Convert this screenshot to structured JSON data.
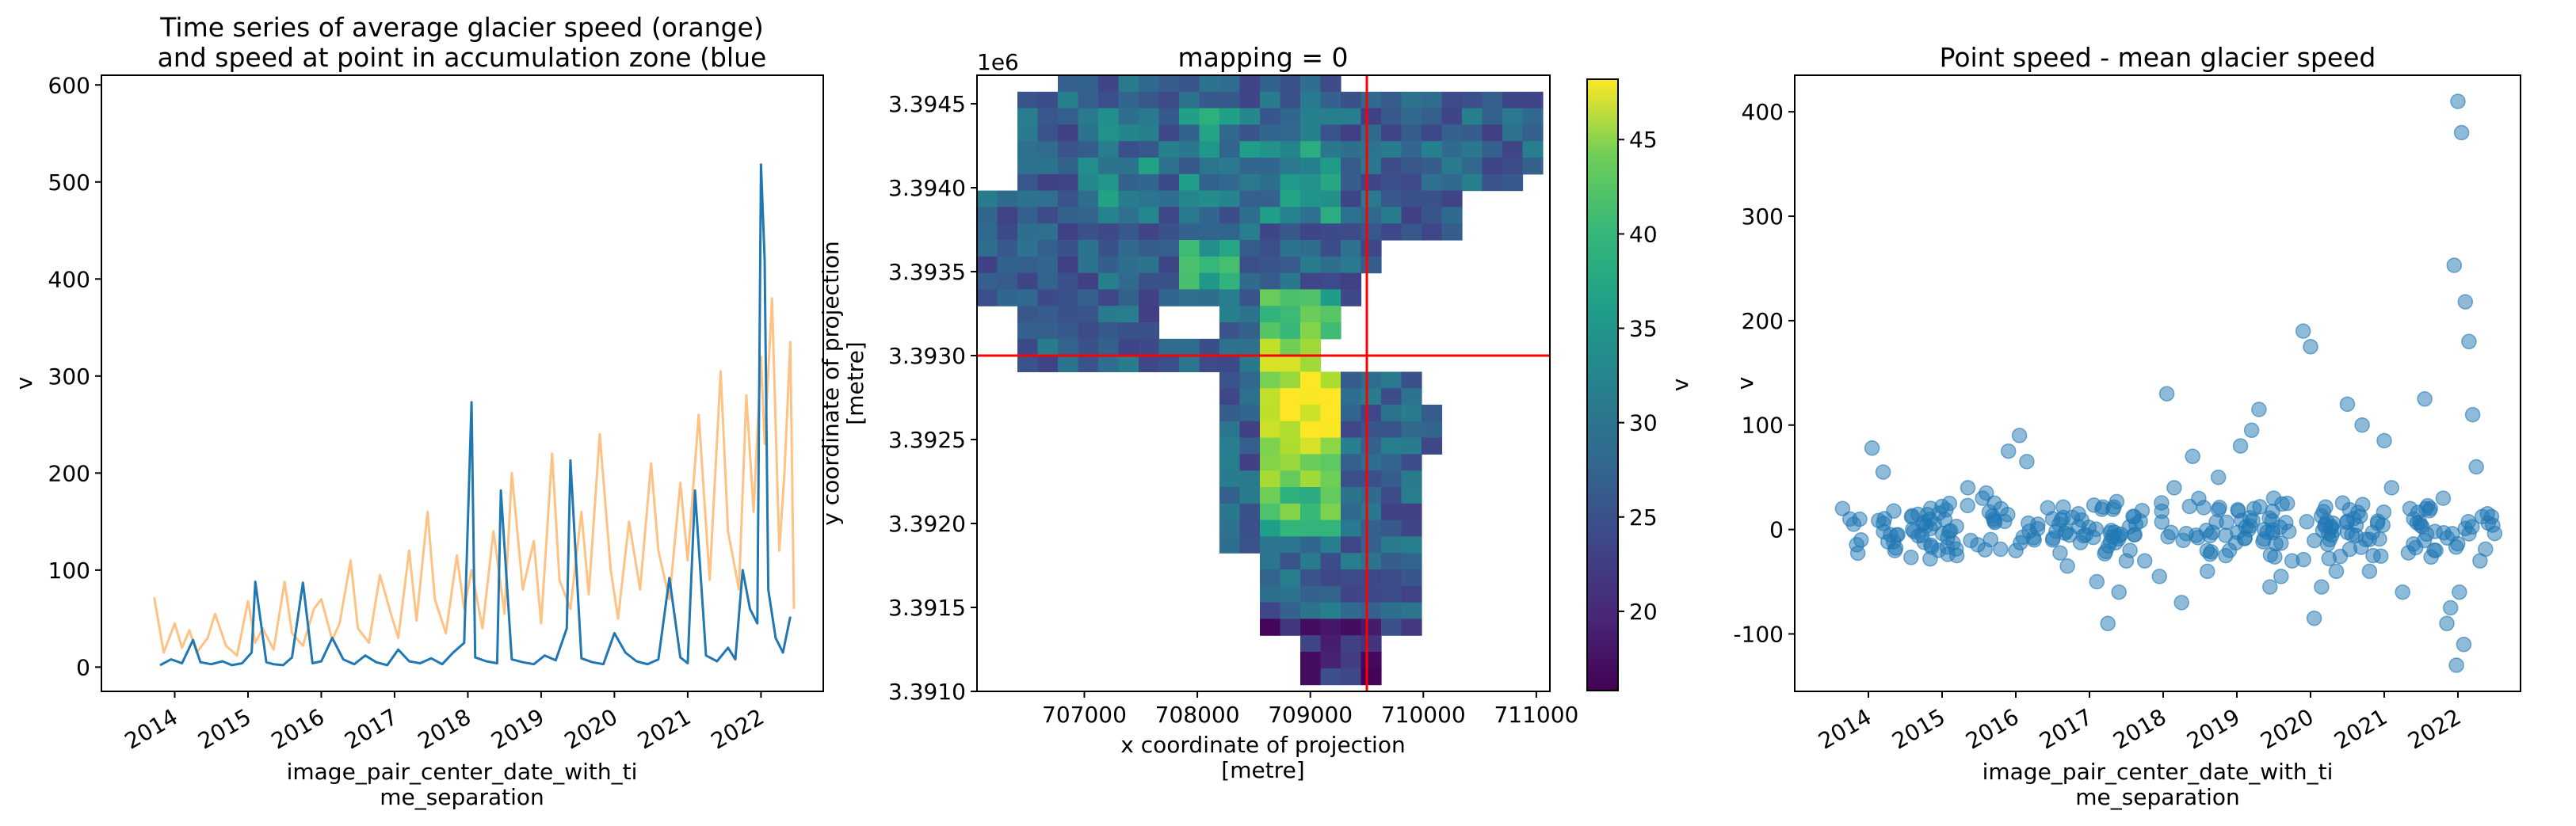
{
  "chart_data": [
    {
      "type": "line",
      "title_line1": "Time series of average glacier speed (orange)",
      "title_line2": "and speed at point in accumulation zone (blue",
      "xlabel_line1": "image_pair_center_date_with_ti",
      "xlabel_line2": "me_separation",
      "ylabel": "v",
      "xlim": [
        2013.0,
        2022.85
      ],
      "ylim": [
        -25,
        610
      ],
      "yticks": [
        "0",
        "100",
        "200",
        "300",
        "400",
        "500",
        "600"
      ],
      "xticks": [
        "2014",
        "2015",
        "2016",
        "2017",
        "2018",
        "2019",
        "2020",
        "2021",
        "2022"
      ],
      "grid": false,
      "series": [
        {
          "color": "#1f77b4",
          "x": [
            2013.8,
            2013.95,
            2014.1,
            2014.25,
            2014.35,
            2014.5,
            2014.65,
            2014.78,
            2014.92,
            2015.05,
            2015.1,
            2015.25,
            2015.35,
            2015.48,
            2015.6,
            2015.75,
            2015.88,
            2016.0,
            2016.15,
            2016.3,
            2016.45,
            2016.6,
            2016.75,
            2016.9,
            2017.05,
            2017.2,
            2017.35,
            2017.5,
            2017.65,
            2017.8,
            2017.95,
            2018.05,
            2018.1,
            2018.25,
            2018.4,
            2018.45,
            2018.6,
            2018.75,
            2018.9,
            2019.05,
            2019.2,
            2019.35,
            2019.4,
            2019.55,
            2019.7,
            2019.85,
            2020.0,
            2020.15,
            2020.3,
            2020.45,
            2020.6,
            2020.75,
            2020.9,
            2021.0,
            2021.1,
            2021.25,
            2021.4,
            2021.55,
            2021.65,
            2021.75,
            2021.85,
            2021.95,
            2022.0,
            2022.05,
            2022.1,
            2022.2,
            2022.3,
            2022.4
          ],
          "values": [
            2,
            8,
            4,
            28,
            5,
            3,
            6,
            2,
            4,
            15,
            88,
            5,
            3,
            2,
            10,
            87,
            4,
            6,
            30,
            8,
            3,
            12,
            5,
            2,
            18,
            6,
            4,
            9,
            3,
            15,
            25,
            273,
            10,
            6,
            4,
            182,
            8,
            5,
            3,
            12,
            7,
            40,
            213,
            9,
            5,
            3,
            35,
            15,
            6,
            3,
            8,
            92,
            10,
            4,
            182,
            12,
            6,
            20,
            8,
            100,
            60,
            45,
            518,
            420,
            80,
            30,
            15,
            52
          ]
        },
        {
          "color": "#ffbb78",
          "x": [
            2013.72,
            2013.85,
            2014.0,
            2014.1,
            2014.2,
            2014.3,
            2014.45,
            2014.55,
            2014.7,
            2014.85,
            2015.0,
            2015.1,
            2015.2,
            2015.35,
            2015.5,
            2015.6,
            2015.75,
            2015.9,
            2016.0,
            2016.15,
            2016.25,
            2016.4,
            2016.5,
            2016.65,
            2016.8,
            2016.95,
            2017.05,
            2017.2,
            2017.3,
            2017.45,
            2017.55,
            2017.7,
            2017.85,
            2017.95,
            2018.05,
            2018.2,
            2018.35,
            2018.5,
            2018.6,
            2018.75,
            2018.9,
            2019.0,
            2019.15,
            2019.25,
            2019.4,
            2019.55,
            2019.65,
            2019.8,
            2019.95,
            2020.05,
            2020.2,
            2020.35,
            2020.5,
            2020.6,
            2020.75,
            2020.9,
            2021.0,
            2021.15,
            2021.3,
            2021.45,
            2021.55,
            2021.7,
            2021.8,
            2021.9,
            2022.0,
            2022.05,
            2022.15,
            2022.25,
            2022.32,
            2022.4,
            2022.45
          ],
          "values": [
            72,
            15,
            45,
            20,
            38,
            15,
            30,
            55,
            22,
            12,
            68,
            25,
            40,
            18,
            88,
            35,
            22,
            60,
            70,
            28,
            45,
            110,
            40,
            25,
            95,
            55,
            30,
            120,
            48,
            160,
            70,
            35,
            115,
            60,
            100,
            40,
            140,
            55,
            200,
            80,
            130,
            45,
            220,
            90,
            60,
            160,
            75,
            240,
            100,
            50,
            150,
            80,
            210,
            120,
            70,
            190,
            110,
            260,
            90,
            305,
            140,
            80,
            280,
            160,
            320,
            230,
            380,
            120,
            200,
            335,
            60
          ]
        }
      ]
    },
    {
      "type": "heatmap",
      "title": "mapping = 0",
      "offset_text": "1e6",
      "xlabel_line1": "x coordinate of projection",
      "xlabel_line2": "[metre]",
      "ylabel_line1": "y coordinate of projection",
      "ylabel_line2": "[metre]",
      "xlim": [
        706050,
        711120
      ],
      "ylim": [
        3.391,
        3.39467
      ],
      "xticks": [
        "707000",
        "708000",
        "709000",
        "710000",
        "711000"
      ],
      "yticks": [
        "3.3910",
        "3.3915",
        "3.3920",
        "3.3925",
        "3.3930",
        "3.3935",
        "3.3940",
        "3.3945"
      ],
      "colormap": "viridis",
      "colorbar_label": "v",
      "colorbar_range": [
        15.8,
        48.2
      ],
      "colorbar_ticks": [
        "20",
        "25",
        "30",
        "35",
        "40",
        "45"
      ],
      "crosshair": {
        "x": 709500,
        "y": 3.393,
        "color": "#ff0000"
      },
      "grid": false
    },
    {
      "type": "scatter",
      "title": "Point speed - mean glacier speed",
      "xlabel_line1": "image_pair_center_date_with_ti",
      "xlabel_line2": "me_separation",
      "ylabel": "v",
      "xlim": [
        2013.0,
        2022.85
      ],
      "ylim": [
        -155,
        435
      ],
      "yticks": [
        "-100",
        "0",
        "100",
        "200",
        "300",
        "400"
      ],
      "xticks": [
        "2014",
        "2015",
        "2016",
        "2017",
        "2018",
        "2019",
        "2020",
        "2021",
        "2022"
      ],
      "color": "#1f77b4",
      "grid": false,
      "x": [
        2013.65,
        2013.8,
        2013.9,
        2014.05,
        2014.2,
        2014.4,
        2014.6,
        2014.85,
        2015.1,
        2015.2,
        2015.35,
        2015.55,
        2015.7,
        2015.9,
        2016.05,
        2016.15,
        2016.3,
        2016.5,
        2016.7,
        2016.95,
        2017.1,
        2017.25,
        2017.4,
        2017.55,
        2017.75,
        2017.95,
        2018.05,
        2018.25,
        2018.4,
        2018.6,
        2018.75,
        2018.9,
        2019.05,
        2019.2,
        2019.3,
        2019.45,
        2019.6,
        2019.75,
        2019.9,
        2020.0,
        2020.05,
        2020.2,
        2020.35,
        2020.5,
        2020.7,
        2020.85,
        2021.0,
        2021.1,
        2021.25,
        2021.4,
        2021.55,
        2021.7,
        2021.8,
        2021.9,
        2021.95,
        2022.0,
        2022.05,
        2022.1,
        2022.15,
        2022.2,
        2022.25,
        2022.3,
        2022.4,
        2013.75,
        2014.3,
        2014.95,
        2015.6,
        2016.25,
        2016.85,
        2017.5,
        2018.15,
        2018.85,
        2019.5,
        2020.15,
        2020.8,
        2021.35,
        2021.85,
        2021.98,
        2022.02,
        2022.08
      ],
      "y": [
        20,
        5,
        -10,
        78,
        55,
        -5,
        0,
        -15,
        25,
        -25,
        40,
        30,
        10,
        75,
        90,
        65,
        5,
        -10,
        -35,
        -5,
        -50,
        -90,
        -60,
        -20,
        -30,
        -45,
        130,
        -70,
        70,
        -40,
        50,
        -20,
        80,
        95,
        115,
        -55,
        -45,
        -30,
        190,
        175,
        -85,
        5,
        -40,
        120,
        100,
        -25,
        85,
        40,
        -60,
        10,
        125,
        -20,
        30,
        -75,
        253,
        410,
        380,
        218,
        180,
        110,
        60,
        -30,
        15,
        10,
        -5,
        -20,
        35,
        -10,
        15,
        -30,
        40,
        -25,
        30,
        -55,
        -40,
        20,
        -90,
        -130,
        -60,
        -110
      ]
    }
  ]
}
